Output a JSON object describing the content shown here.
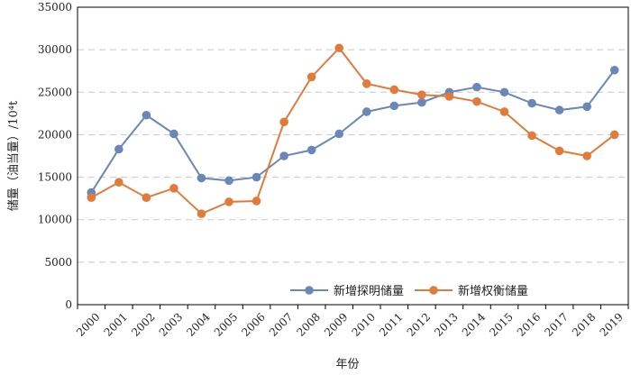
{
  "chart_data": {
    "type": "line",
    "title": "",
    "xlabel": "年份",
    "ylabel": "储量（油当量）/10⁴t",
    "ylim": [
      0,
      35000
    ],
    "yticks": [
      0,
      5000,
      10000,
      15000,
      20000,
      25000,
      30000,
      35000
    ],
    "grid": "horizontal dashed",
    "legend_position": "bottom-right",
    "x": [
      "2000",
      "2001",
      "2002",
      "2003",
      "2004",
      "2005",
      "2006",
      "2007",
      "2008",
      "2009",
      "2010",
      "2011",
      "2012",
      "2013",
      "2014",
      "2015",
      "2016",
      "2017",
      "2018",
      "2019"
    ],
    "series": [
      {
        "name": "新增探明储量",
        "color": "#6b87b8",
        "values": [
          13200,
          18300,
          22300,
          20100,
          14900,
          14600,
          15000,
          17500,
          18200,
          20100,
          22700,
          23400,
          23800,
          25000,
          25600,
          25000,
          23700,
          22900,
          23300,
          27600
        ]
      },
      {
        "name": "新增权衡储量",
        "color": "#e07b3c",
        "values": [
          12600,
          14400,
          12600,
          13700,
          10700,
          12100,
          12200,
          21500,
          26800,
          30200,
          26000,
          25300,
          24700,
          24500,
          23900,
          22700,
          19900,
          18100,
          17500,
          20000
        ]
      }
    ]
  }
}
